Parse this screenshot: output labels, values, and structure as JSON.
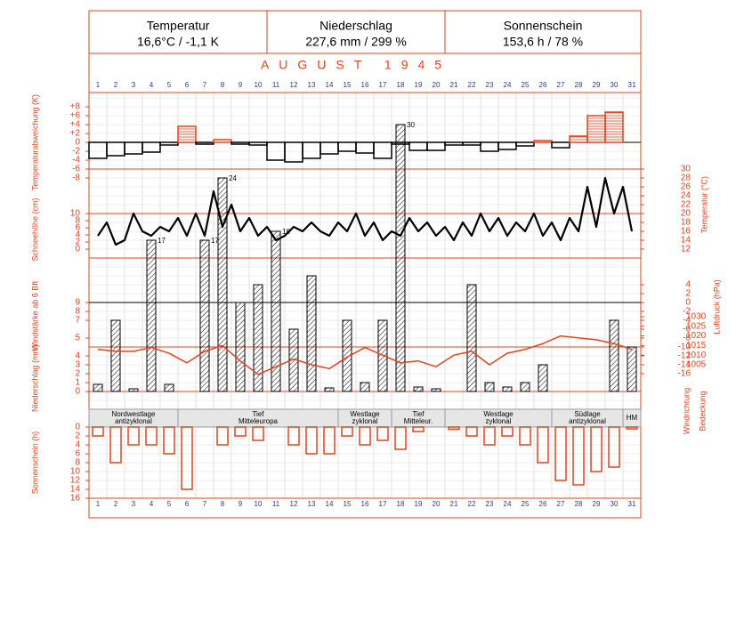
{
  "header": [
    {
      "label": "Temperatur",
      "value": "16,6°C / -1,1 K"
    },
    {
      "label": "Niederschlag",
      "value": "227,6 mm / 299 %"
    },
    {
      "label": "Sonnenschein",
      "value": "153,6 h / 78 %"
    }
  ],
  "title": "AUGUST 1945",
  "side_labels": [
    "Windrichtung",
    "Bedeckung"
  ],
  "chart_data": [
    {
      "type": "bar",
      "ylabel": "Temperaturabweichung (K)",
      "axis_side": "left",
      "x": [
        1,
        2,
        3,
        4,
        5,
        6,
        7,
        8,
        9,
        10,
        11,
        12,
        13,
        14,
        15,
        16,
        17,
        18,
        19,
        20,
        21,
        22,
        23,
        24,
        25,
        26,
        27,
        28,
        29,
        30,
        31
      ],
      "values": [
        -3.6,
        -3,
        -2.6,
        -2.2,
        -0.6,
        3.6,
        -0.4,
        0.6,
        -0.4,
        -0.6,
        -4,
        -4.4,
        -3.6,
        -2.6,
        -2,
        -2.4,
        -3.6,
        -0.4,
        -1.8,
        -1.8,
        -0.6,
        -0.6,
        -2,
        -1.6,
        -0.8,
        0.4,
        -1.2,
        1.4,
        6,
        6.8,
        0
      ],
      "ylim": [
        -8,
        8
      ],
      "yticks": [
        {
          "value": 8,
          "label": "+8"
        },
        {
          "value": 6,
          "label": "+6"
        },
        {
          "value": 4,
          "label": "+4"
        },
        {
          "value": 2,
          "label": "+2"
        },
        0,
        -2,
        -4,
        -6,
        -8
      ],
      "colors": {
        "positive": "#e8401c",
        "negative": "#000000"
      }
    },
    {
      "type": "line",
      "ylabel": "Temperatur (°C)",
      "axis_side": "right",
      "x": [
        1,
        1.5,
        2,
        2.5,
        3,
        3.5,
        4,
        4.5,
        5,
        5.5,
        6,
        6.5,
        7,
        7.5,
        8,
        8.5,
        9,
        9.5,
        10,
        10.5,
        11,
        11.5,
        12,
        12.5,
        13,
        13.5,
        14,
        14.5,
        15,
        15.5,
        16,
        16.5,
        17,
        17.5,
        18,
        18.5,
        19,
        19.5,
        20,
        20.5,
        21,
        21.5,
        22,
        22.5,
        23,
        23.5,
        24,
        24.5,
        25,
        25.5,
        26,
        26.5,
        27,
        27.5,
        28,
        28.5,
        29,
        29.5,
        30,
        30.5,
        31
      ],
      "values": [
        15,
        18,
        13,
        14,
        20,
        16,
        15,
        17,
        16,
        19,
        15,
        20,
        15,
        25,
        17,
        22,
        16,
        19,
        15,
        17,
        14,
        15,
        17,
        16,
        18,
        16,
        15,
        18,
        16,
        20,
        15,
        18,
        14,
        16,
        15,
        19,
        16,
        18,
        15,
        17,
        14,
        18,
        15,
        20,
        16,
        19,
        15,
        18,
        16,
        20,
        15,
        18,
        14,
        19,
        16,
        26,
        17,
        28,
        20,
        26,
        16
      ],
      "ylim": [
        -16,
        30
      ],
      "yticks": [
        30,
        28,
        26,
        24,
        22,
        20,
        18,
        16,
        14,
        12,
        4,
        2,
        0,
        -2,
        -4,
        -6,
        -8,
        -10,
        -12,
        -14,
        -16
      ],
      "color": "#000000"
    },
    {
      "type": "axis",
      "ylabel": "Schneehöhe (cm)",
      "axis_side": "left",
      "ylim": [
        0,
        10
      ],
      "yticks": [
        10,
        8,
        6,
        4,
        2,
        0
      ]
    },
    {
      "type": "axis",
      "ylabel": "Windstärke ab 6 Bft",
      "axis_side": "left",
      "ylim": [
        4,
        9
      ],
      "yticks": [
        9,
        8,
        7,
        5
      ]
    },
    {
      "type": "bar",
      "ylabel": "Niederschlag (mm)",
      "axis_side": "left",
      "x": [
        1,
        2,
        3,
        4,
        5,
        6,
        7,
        8,
        9,
        10,
        11,
        12,
        13,
        14,
        15,
        16,
        17,
        18,
        19,
        20,
        21,
        22,
        23,
        24,
        25,
        26,
        27,
        28,
        29,
        30,
        31
      ],
      "values": [
        0.8,
        8,
        0.3,
        17,
        0.8,
        0,
        17,
        24,
        10,
        12,
        18,
        7,
        13,
        0.4,
        8,
        1,
        8,
        30,
        0.5,
        0.3,
        0,
        12,
        1,
        0.5,
        1,
        3,
        0,
        0,
        0,
        8,
        5
      ],
      "value_labels": [
        null,
        null,
        null,
        "17",
        null,
        null,
        "17",
        "24",
        null,
        null,
        "18",
        null,
        null,
        null,
        null,
        null,
        null,
        "30",
        null,
        null,
        null,
        null,
        null,
        null,
        null,
        null,
        null,
        null,
        null,
        null,
        null
      ],
      "ylim": [
        0,
        30
      ],
      "yticks": [
        0,
        1,
        2,
        3,
        4
      ],
      "color": "#000000"
    },
    {
      "type": "line",
      "ylabel": "Luftdruck (hPa)",
      "axis_side": "right",
      "x": [
        1,
        2,
        3,
        4,
        5,
        6,
        7,
        8,
        9,
        10,
        11,
        12,
        13,
        14,
        15,
        16,
        17,
        18,
        19,
        20,
        21,
        22,
        23,
        24,
        25,
        26,
        27,
        28,
        29,
        30,
        31
      ],
      "values": [
        1013,
        1012,
        1012,
        1014,
        1011,
        1006,
        1012,
        1015,
        1007,
        1000,
        1004,
        1008,
        1005,
        1003,
        1009,
        1014,
        1010,
        1006,
        1007,
        1004,
        1010,
        1012,
        1005,
        1011,
        1013,
        1016,
        1020,
        1019,
        1018,
        1016,
        1013
      ],
      "ylim": [
        1000,
        1035
      ],
      "yticks": [
        1030,
        1025,
        1020,
        1015,
        1010,
        1005
      ],
      "color": "#e8401c"
    },
    {
      "type": "spans",
      "segments": [
        {
          "lines": [
            "Nordwestlage",
            "antizyklonal"
          ],
          "start": 1,
          "end": 5
        },
        {
          "lines": [
            "Tief",
            "Mitteleuropa"
          ],
          "start": 6,
          "end": 14
        },
        {
          "lines": [
            "Westlage",
            "zyklonal"
          ],
          "start": 15,
          "end": 17
        },
        {
          "lines": [
            "Tief",
            "Mitteleur."
          ],
          "start": 18,
          "end": 20
        },
        {
          "lines": [
            "Westlage",
            "zyklonal"
          ],
          "start": 21,
          "end": 26
        },
        {
          "lines": [
            "Südlage",
            "antizyklonal"
          ],
          "start": 27,
          "end": 30
        },
        {
          "lines": [
            "HM"
          ],
          "start": 31,
          "end": 31
        }
      ]
    },
    {
      "type": "bar",
      "ylabel": "Sonnenschein (h)",
      "axis_side": "left",
      "direction": "down",
      "x": [
        1,
        2,
        3,
        4,
        5,
        6,
        7,
        8,
        9,
        10,
        11,
        12,
        13,
        14,
        15,
        16,
        17,
        18,
        19,
        20,
        21,
        22,
        23,
        24,
        25,
        26,
        27,
        28,
        29,
        30,
        31
      ],
      "values": [
        2,
        8,
        4,
        4,
        6,
        14,
        0,
        4,
        2,
        3,
        0,
        4,
        6,
        6,
        2,
        4,
        3,
        5,
        1,
        0,
        0.5,
        2,
        4,
        2,
        4,
        8,
        12,
        13,
        10,
        9,
        0.4
      ],
      "ylim": [
        0,
        16
      ],
      "yticks": [
        0,
        2,
        4,
        6,
        8,
        10,
        12,
        14,
        16
      ],
      "color": "#e8401c"
    }
  ]
}
